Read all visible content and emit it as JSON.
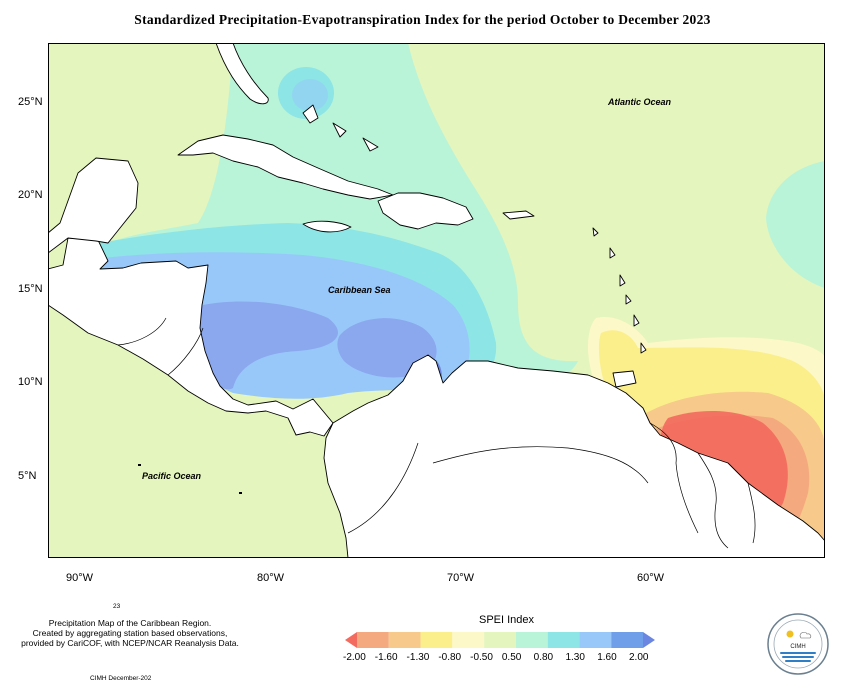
{
  "title": "Standardized Precipitation-Evapotranspiration Index for the period October to December 2023",
  "latitude_labels": [
    "25°N",
    "20°N",
    "15°N",
    "10°N",
    "5°N"
  ],
  "longitude_labels": [
    "90°W",
    "80°W",
    "70°W",
    "60°W"
  ],
  "places": {
    "atlantic": "Atlantic Ocean",
    "caribbean": "Caribbean Sea",
    "pacific": "Pacific Ocean"
  },
  "legend": {
    "title": "SPEI Index",
    "ticks": [
      "-2.00",
      "-1.60",
      "-1.30",
      "-0.80",
      "-0.50",
      "0.50",
      "0.80",
      "1.30",
      "1.60",
      "2.00"
    ],
    "colors": [
      "#f26b5e",
      "#f5a97e",
      "#f7c98a",
      "#fbef8c",
      "#fdf8c8",
      "#e4f5bd",
      "#b9f4d8",
      "#8de5e5",
      "#98c8fa",
      "#6f9fe8",
      "#6b86e0"
    ]
  },
  "notes": {
    "number": "23",
    "line1": "Precipitation Map of the Caribbean Region.",
    "line2": "Created by aggregating station based observations,",
    "line3": "provided by CariCOF, with NCEP/NCAR Reanalysis Data.",
    "credit": "CIMH December-202"
  },
  "logo": {
    "text": "CIMH"
  }
}
